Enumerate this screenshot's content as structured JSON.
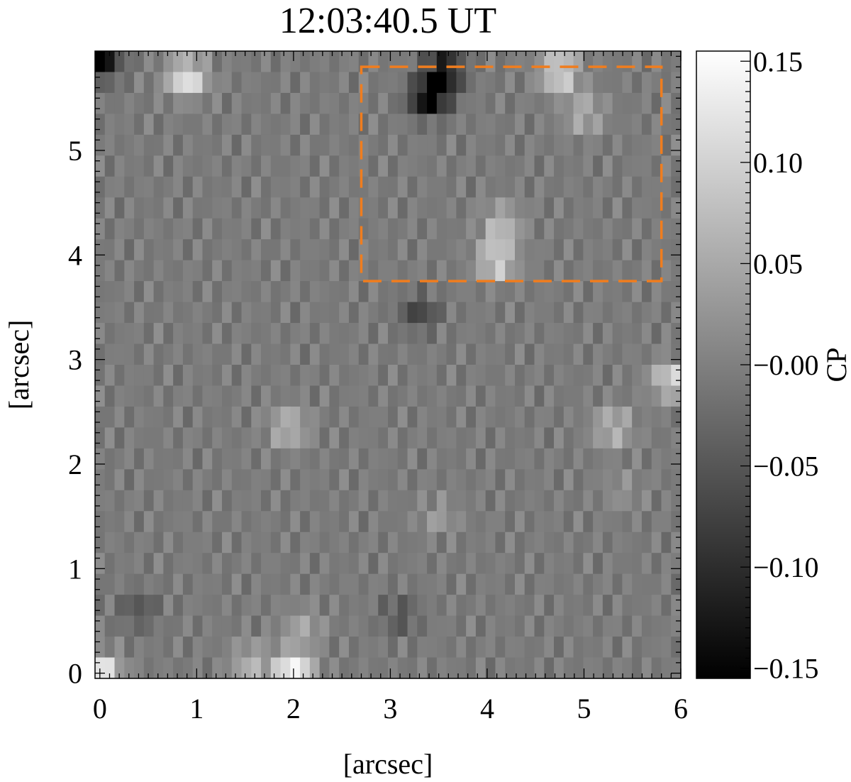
{
  "chart_data": {
    "type": "heatmap",
    "title": "12:03:40.5 UT",
    "xlabel": "[arcsec]",
    "ylabel": "[arcsec]",
    "xlim": [
      -0.05,
      6.0
    ],
    "ylim": [
      -0.05,
      5.95
    ],
    "x_ticks": [
      "0",
      "1",
      "2",
      "3",
      "4",
      "5",
      "6"
    ],
    "y_ticks": [
      "0",
      "1",
      "2",
      "3",
      "4",
      "5"
    ],
    "grid": false,
    "colorbar": {
      "label": "CP",
      "range": [
        -0.155,
        0.155
      ],
      "ticks": [
        "0.15",
        "0.10",
        "0.05",
        "−0.00",
        "−0.05",
        "−0.10",
        "−0.15"
      ],
      "colormap": "grayscale"
    },
    "overlay_box": {
      "color": "#f07d1e",
      "style": "dashed",
      "x_range": [
        2.7,
        5.8
      ],
      "y_range": [
        3.75,
        5.8
      ]
    },
    "features": [
      {
        "x": 3.4,
        "y": 5.5,
        "value": -0.16
      },
      {
        "x": 3.55,
        "y": 5.75,
        "value": -0.15
      },
      {
        "x": 0.9,
        "y": 5.7,
        "value": 0.14
      },
      {
        "x": 4.75,
        "y": 5.75,
        "value": 0.13
      },
      {
        "x": 5.0,
        "y": 5.35,
        "value": 0.07
      },
      {
        "x": 4.1,
        "y": 3.95,
        "value": 0.12
      },
      {
        "x": 4.15,
        "y": 4.3,
        "value": 0.08
      },
      {
        "x": 3.3,
        "y": 3.45,
        "value": -0.07
      },
      {
        "x": 1.95,
        "y": 2.35,
        "value": 0.08
      },
      {
        "x": 5.3,
        "y": 2.35,
        "value": 0.08
      },
      {
        "x": 5.9,
        "y": 2.8,
        "value": 0.11
      },
      {
        "x": 2.0,
        "y": 0.05,
        "value": 0.15
      },
      {
        "x": 1.55,
        "y": 0.1,
        "value": 0.07
      },
      {
        "x": 2.1,
        "y": 0.45,
        "value": 0.05
      },
      {
        "x": 0.0,
        "y": 0.0,
        "value": 0.15
      },
      {
        "x": 0.0,
        "y": 5.85,
        "value": -0.15
      },
      {
        "x": 3.1,
        "y": 0.55,
        "value": -0.05
      },
      {
        "x": 0.4,
        "y": 0.6,
        "value": -0.05
      },
      {
        "x": 3.5,
        "y": 1.5,
        "value": 0.04
      },
      {
        "x": 5.4,
        "y": 1.75,
        "value": 0.03
      }
    ]
  }
}
